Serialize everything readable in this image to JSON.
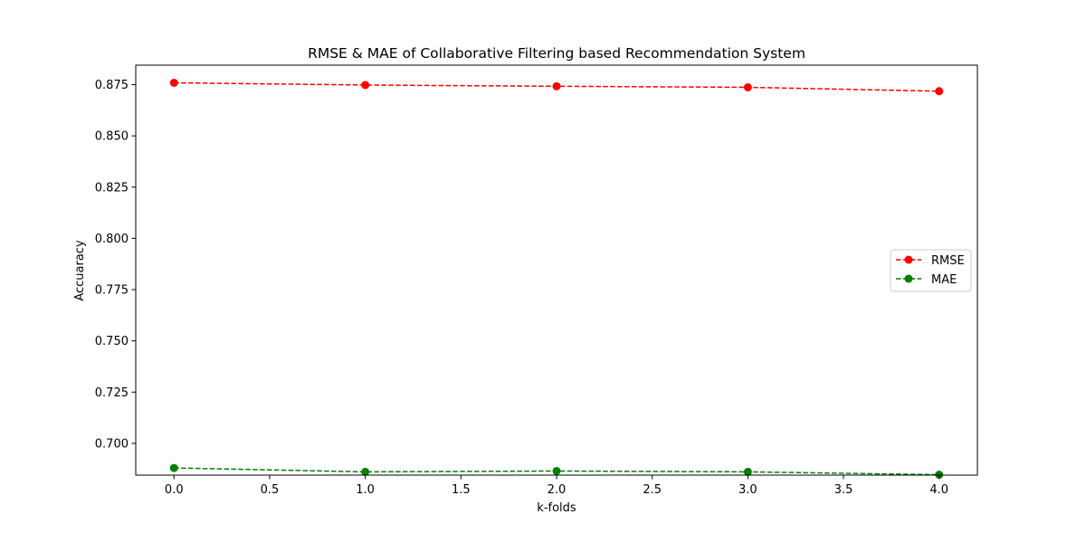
{
  "chart_data": {
    "type": "line",
    "title": "RMSE & MAE of Collaborative Filtering based Recommendation System",
    "xlabel": "k-folds",
    "ylabel": "Accuaracy",
    "xlim": [
      -0.2,
      4.2
    ],
    "ylim": [
      0.6845,
      0.8845
    ],
    "xticks": [
      0.0,
      0.5,
      1.0,
      1.5,
      2.0,
      2.5,
      3.0,
      3.5,
      4.0
    ],
    "xtick_labels": [
      "0.0",
      "0.5",
      "1.0",
      "1.5",
      "2.0",
      "2.5",
      "3.0",
      "3.5",
      "4.0"
    ],
    "yticks": [
      0.7,
      0.725,
      0.75,
      0.775,
      0.8,
      0.825,
      0.85,
      0.875
    ],
    "ytick_labels": [
      "0.700",
      "0.725",
      "0.750",
      "0.775",
      "0.800",
      "0.825",
      "0.850",
      "0.875"
    ],
    "x": [
      0,
      1,
      2,
      3,
      4
    ],
    "series": [
      {
        "name": "RMSE",
        "values": [
          0.8759,
          0.8748,
          0.8742,
          0.8737,
          0.8718
        ],
        "color": "#ff0000",
        "line_style": "dashed",
        "marker": "circle"
      },
      {
        "name": "MAE",
        "values": [
          0.688,
          0.6861,
          0.6865,
          0.6861,
          0.6847
        ],
        "color": "#008000",
        "line_style": "dashed",
        "marker": "circle"
      }
    ],
    "legend": "center-right",
    "grid": false
  }
}
